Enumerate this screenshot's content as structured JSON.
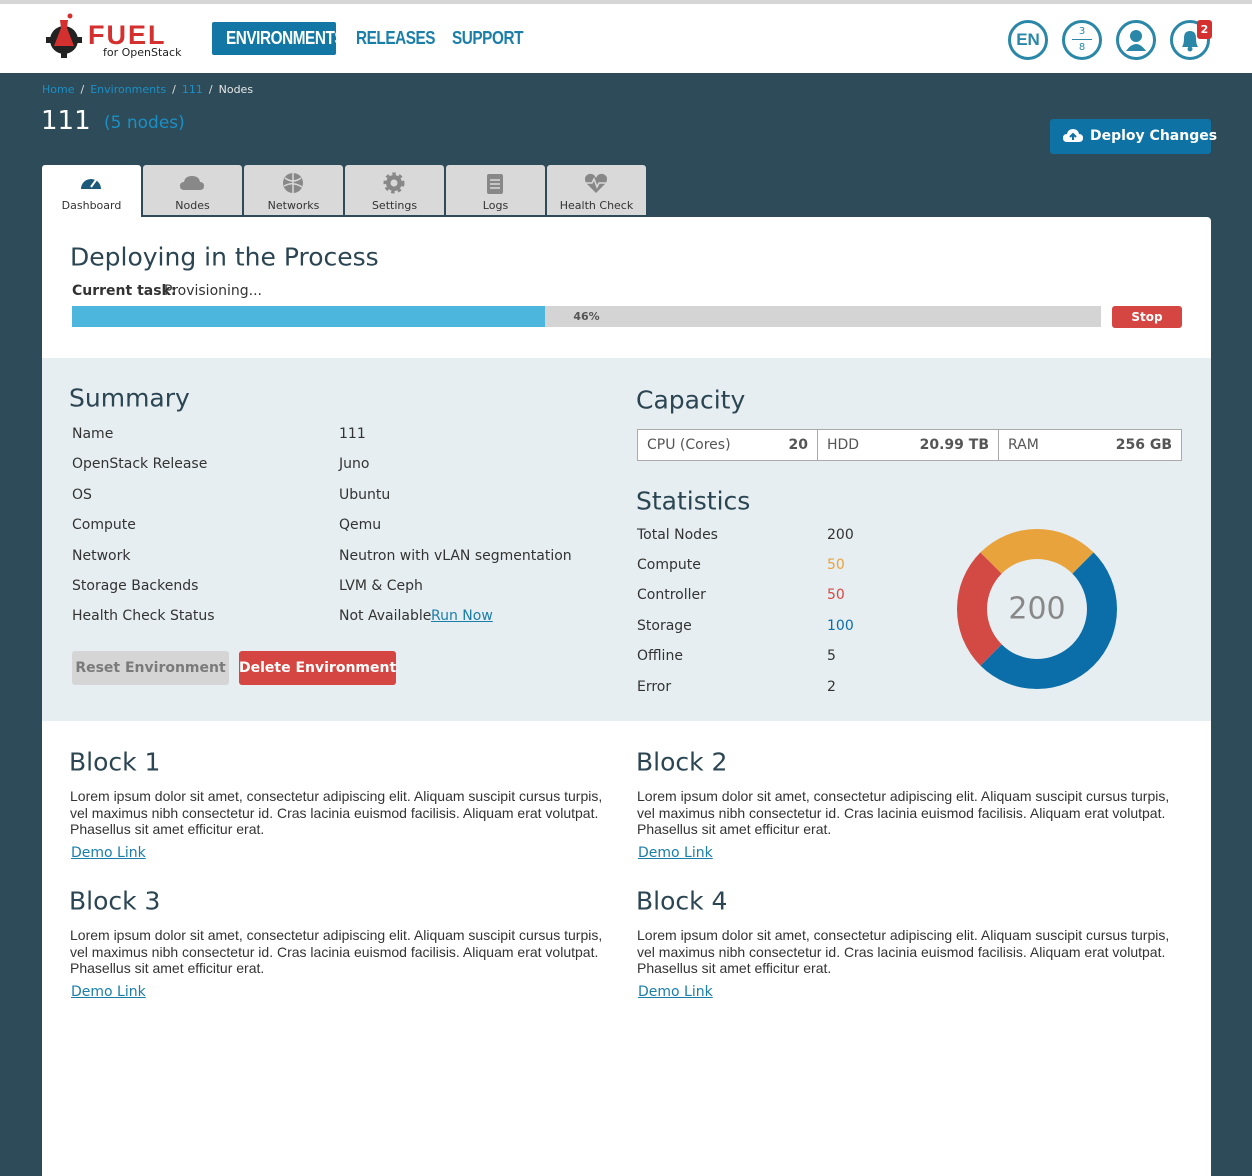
{
  "header": {
    "logo_title": "FUEL",
    "logo_subtitle": "for OpenStack",
    "nav": [
      "ENVIRONMENTS",
      "RELEASES",
      "SUPPORT"
    ],
    "language": "EN",
    "tasks": {
      "running": 3,
      "total": 8
    },
    "notifications": 2
  },
  "breadcrumbs": [
    "Home",
    "Environments",
    "111",
    "Nodes"
  ],
  "environment": {
    "name": "111",
    "nodes": "(5 nodes)",
    "deploy_button": "Deploy Changes"
  },
  "tabs": [
    "Dashboard",
    "Nodes",
    "Networks",
    "Settings",
    "Logs",
    "Health Check"
  ],
  "deployment": {
    "title": "Deploying in the Process",
    "task_label": "Current task:",
    "task": "Provisioning...",
    "progress": {
      "value": 46,
      "label": "46%"
    },
    "stop": "Stop"
  },
  "summary": {
    "title": "Summary",
    "rows": [
      [
        "Name",
        "111"
      ],
      [
        "OpenStack Release",
        "Juno"
      ],
      [
        "OS",
        "Ubuntu"
      ],
      [
        "Compute",
        "Qemu"
      ],
      [
        "Network",
        "Neutron with vLAN segmentation"
      ],
      [
        "Storage Backends",
        "LVM & Ceph"
      ],
      [
        "Health Check Status",
        "Not Available"
      ]
    ],
    "run_now": "Run Now",
    "reset": "Reset Environment",
    "delete": "Delete Environment"
  },
  "capacity": {
    "title": "Capacity",
    "items": [
      [
        "CPU (Cores)",
        "20"
      ],
      [
        "HDD",
        "20.99 TB"
      ],
      [
        "RAM",
        "256 GB"
      ]
    ]
  },
  "statistics": {
    "title": "Statistics",
    "total": {
      "label": "Total Nodes",
      "value": 200
    },
    "rows": [
      {
        "label": "Compute",
        "value": 50,
        "color": "#e8a33d"
      },
      {
        "label": "Controller",
        "value": 50,
        "color": "#d34a44"
      },
      {
        "label": "Storage",
        "value": 100,
        "color": "#0b6ea9"
      },
      {
        "label": "Offline",
        "value": 5
      },
      {
        "label": "Error",
        "value": 2
      }
    ]
  },
  "blocks": [
    {
      "title": "Block 1",
      "text": "Lorem ipsum dolor sit amet, consectetur adipiscing elit. Aliquam suscipit cursus turpis, vel maximus nibh consectetur id. Cras lacinia euismod facilisis. Aliquam erat volutpat. Phasellus sit amet efficitur erat.",
      "link": "Demo Link"
    },
    {
      "title": "Block 2",
      "text": "Lorem ipsum dolor sit amet, consectetur adipiscing elit. Aliquam suscipit cursus turpis, vel maximus nibh consectetur id. Cras lacinia euismod facilisis. Aliquam erat volutpat. Phasellus sit amet efficitur erat.",
      "link": "Demo Link"
    },
    {
      "title": "Block 3",
      "text": "Lorem ipsum dolor sit amet, consectetur adipiscing elit. Aliquam suscipit cursus turpis, vel maximus nibh consectetur id. Cras lacinia euismod facilisis. Aliquam erat volutpat. Phasellus sit amet efficitur erat.",
      "link": "Demo Link"
    },
    {
      "title": "Block 4",
      "text": "Lorem ipsum dolor sit amet, consectetur adipiscing elit. Aliquam suscipit cursus turpis, vel maximus nibh consectetur id. Cras lacinia euismod facilisis. Aliquam erat volutpat. Phasellus sit amet efficitur erat.",
      "link": "Demo Link"
    }
  ]
}
